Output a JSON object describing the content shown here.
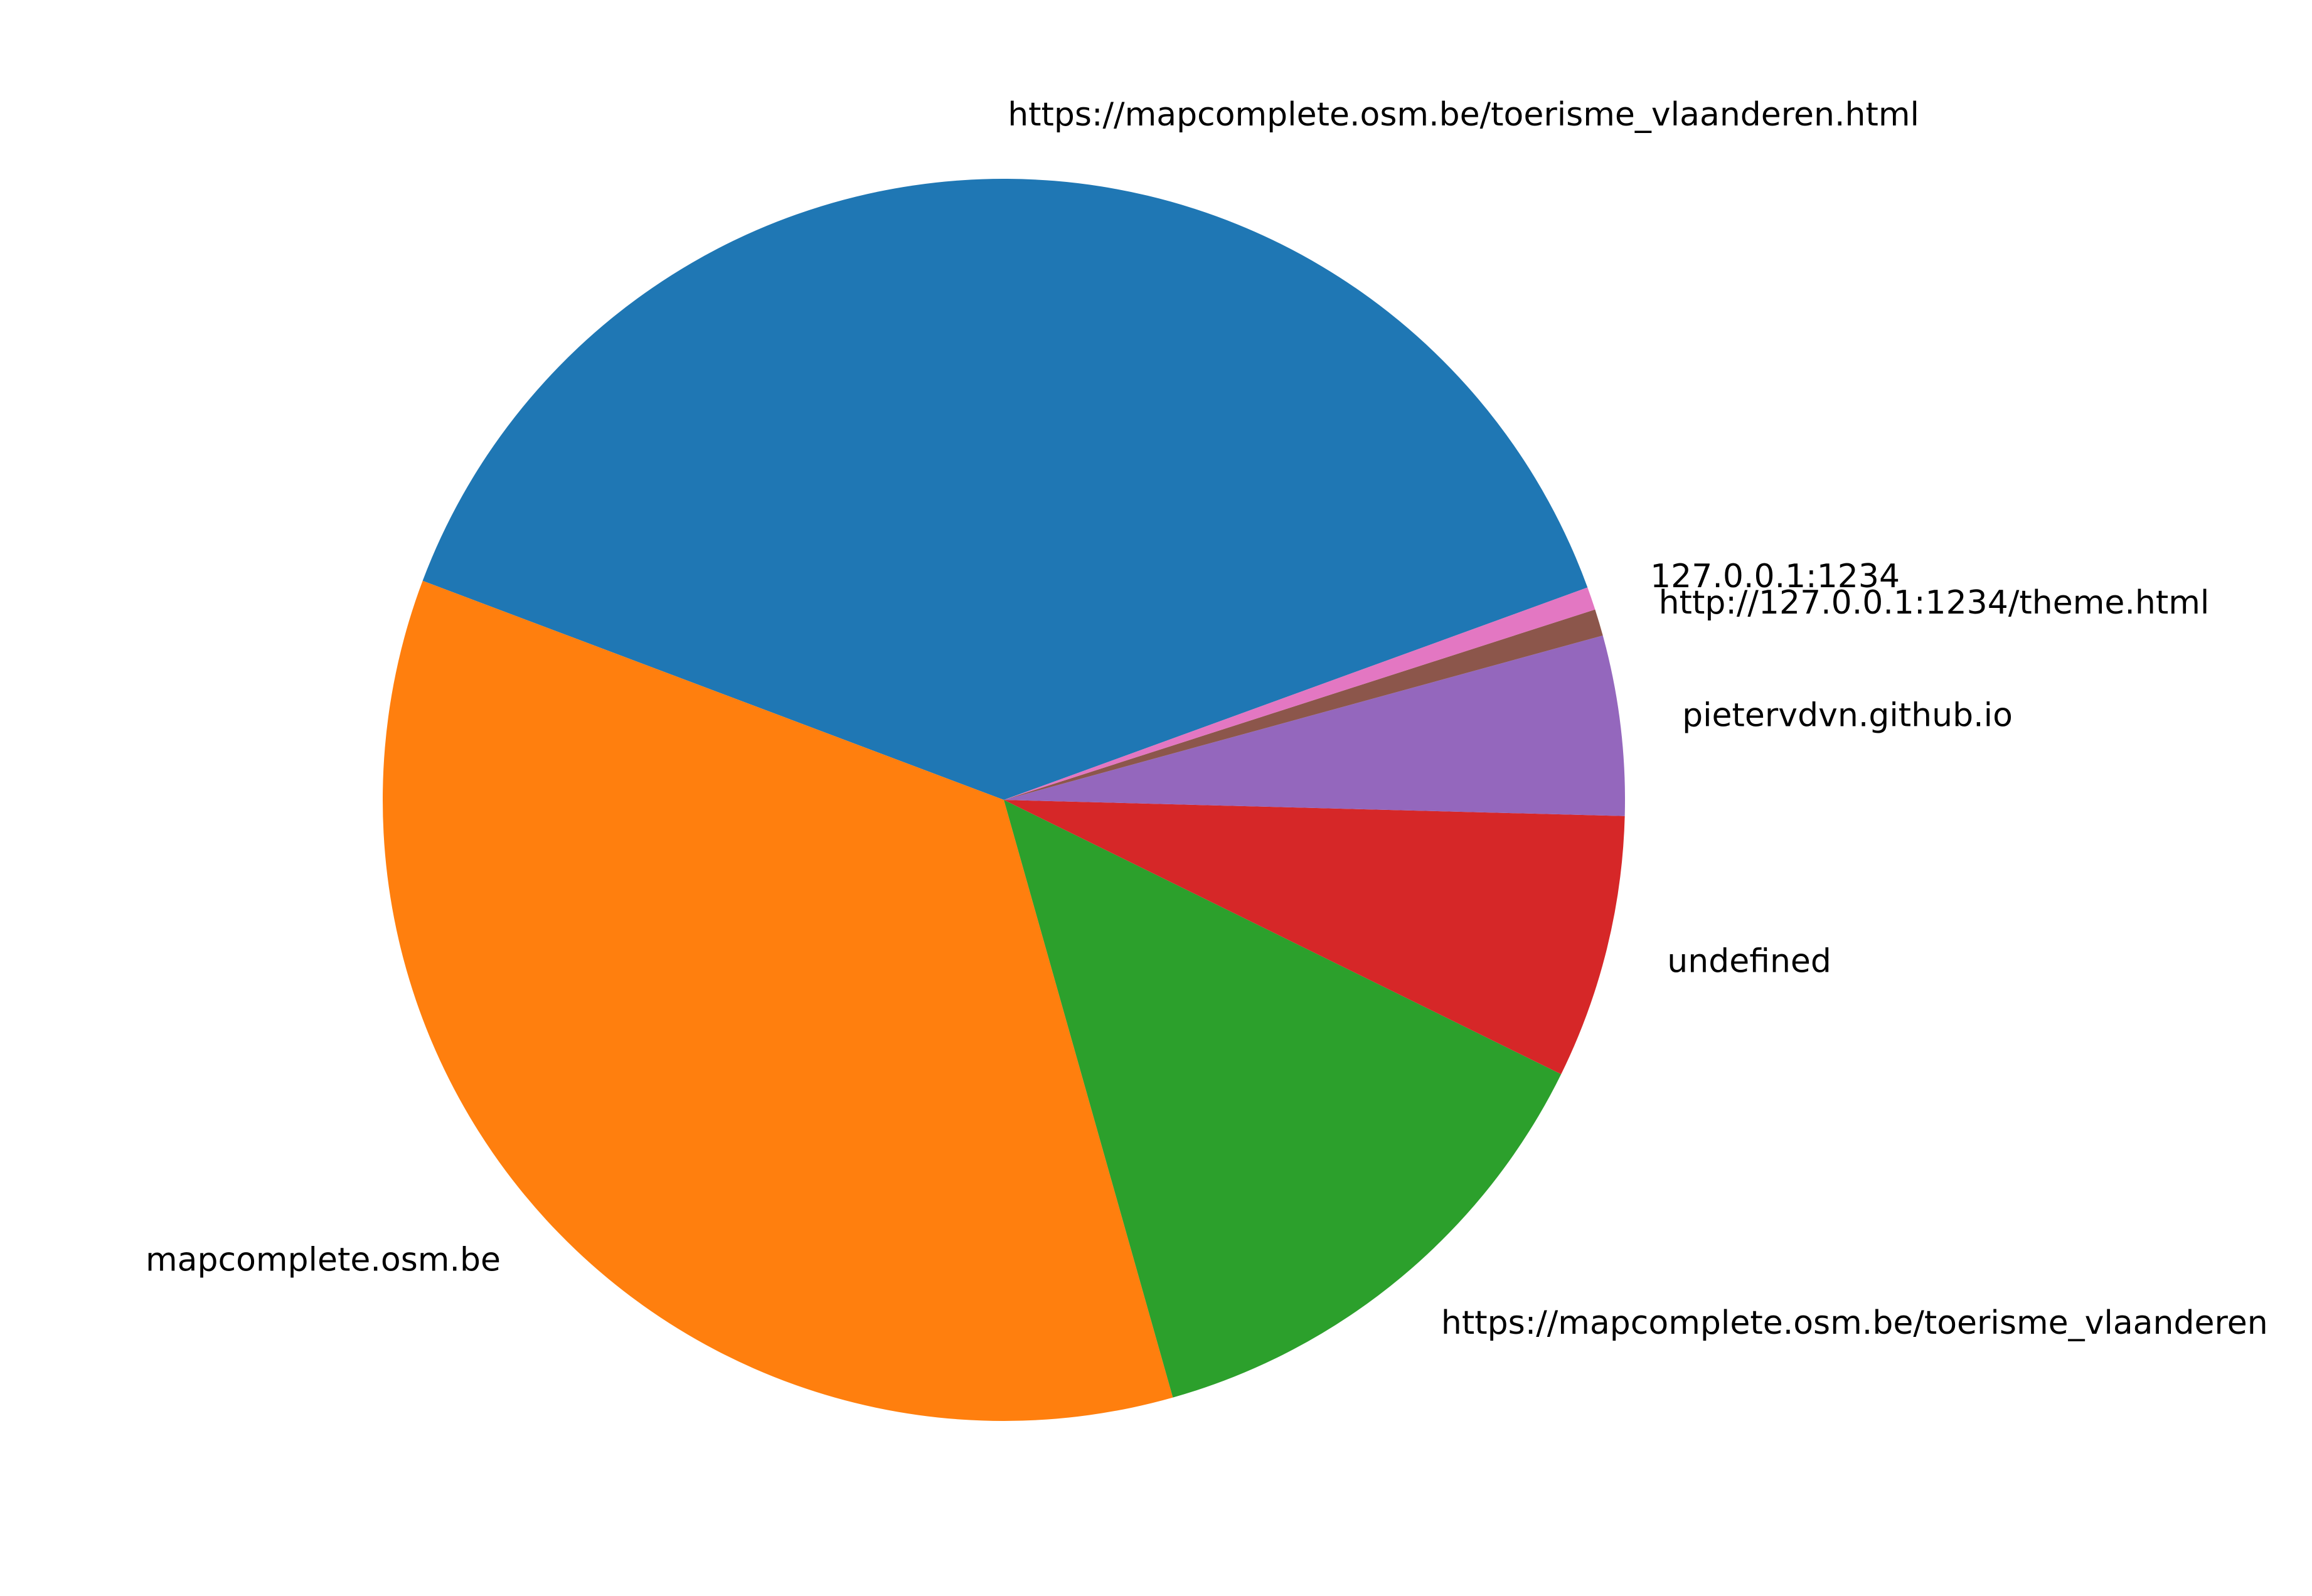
{
  "chart_data": {
    "type": "pie",
    "start_angle_deg": 20,
    "direction": "counterclockwise",
    "slices": [
      {
        "label": "https://mapcomplete.osm.be/toerisme_vlaanderen.html",
        "value": 38.9,
        "color": "#1f77b4"
      },
      {
        "label": "mapcomplete.osm.be",
        "value": 35.3,
        "color": "#ff7f0e"
      },
      {
        "label": "https://mapcomplete.osm.be/toerisme_vlaanderen",
        "value": 13.4,
        "color": "#2ca02c"
      },
      {
        "label": "undefined",
        "value": 6.9,
        "color": "#d62728"
      },
      {
        "label": "pietervdvn.github.io",
        "value": 4.7,
        "color": "#9467bd"
      },
      {
        "label": "http://127.0.0.1:1234/theme.html",
        "value": 0.7,
        "color": "#8c564b"
      },
      {
        "label": "127.0.0.1:1234",
        "value": 0.6,
        "color": "#e377c2"
      }
    ]
  }
}
